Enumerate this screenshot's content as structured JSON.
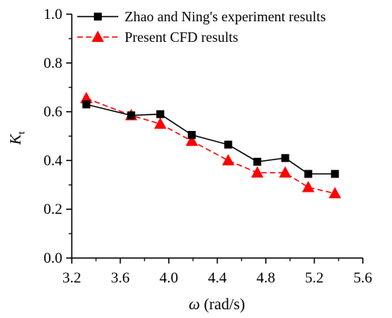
{
  "chart_data": {
    "type": "line",
    "xlabel": {
      "symbol": "ω",
      "unit": " (rad/s)"
    },
    "ylabel": {
      "symbol": "K",
      "subscript": "t"
    },
    "xlim": [
      3.2,
      5.6
    ],
    "ylim": [
      0.0,
      1.0
    ],
    "x_ticks": [
      "3.2",
      "3.6",
      "4.0",
      "4.4",
      "4.8",
      "5.2",
      "5.6"
    ],
    "y_ticks": [
      "0.0",
      "0.2",
      "0.4",
      "0.6",
      "0.8",
      "1.0"
    ],
    "grid": false,
    "legend_position": "top-left",
    "series": [
      {
        "name": "Zhao and Ning's experiment results",
        "color": "#000000",
        "line_style": "solid",
        "marker": "square",
        "x": [
          3.32,
          3.69,
          3.93,
          4.19,
          4.49,
          4.73,
          4.96,
          5.15,
          5.37
        ],
        "y": [
          0.63,
          0.585,
          0.59,
          0.505,
          0.465,
          0.395,
          0.41,
          0.345,
          0.345
        ]
      },
      {
        "name": "Present CFD results",
        "color": "#ff0000",
        "line_style": "dashed",
        "marker": "triangle",
        "x": [
          3.32,
          3.69,
          3.93,
          4.19,
          4.49,
          4.73,
          4.96,
          5.15,
          5.37
        ],
        "y": [
          0.655,
          0.585,
          0.55,
          0.48,
          0.4,
          0.35,
          0.35,
          0.29,
          0.265
        ]
      }
    ]
  }
}
